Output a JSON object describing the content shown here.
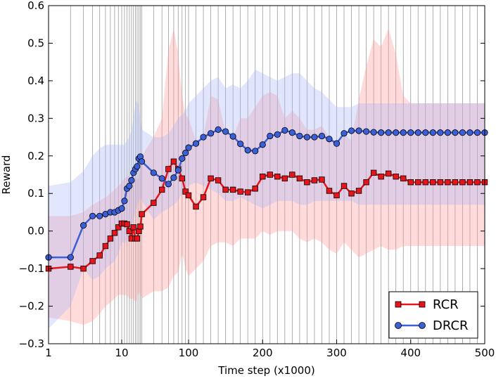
{
  "chart_data": {
    "type": "line",
    "xlabel": "Time step (x1000)",
    "ylabel": "Reward",
    "ylim": [
      -0.3,
      0.6
    ],
    "yticks": [
      "−0.3",
      "−0.2",
      "−0.1",
      "0.0",
      "0.1",
      "0.2",
      "0.3",
      "0.4",
      "0.5",
      "0.6"
    ],
    "yticks_values": [
      -0.3,
      -0.2,
      -0.1,
      0.0,
      0.1,
      0.2,
      0.3,
      0.4,
      0.5,
      0.6
    ],
    "xticks": [
      "1",
      "10",
      "100",
      "200",
      "300",
      "400",
      "500"
    ],
    "x_scale": "piecewise: log from 1 to 100, linear from 100 to 500",
    "grid": "vertical at each sample",
    "legend_position": "bottom-right",
    "x": [
      1,
      2,
      3,
      4,
      5,
      6,
      7,
      8,
      9,
      10,
      11,
      12,
      13,
      14,
      15,
      16,
      17,
      18,
      19,
      20,
      30,
      40,
      50,
      60,
      70,
      80,
      90,
      100,
      110,
      120,
      130,
      140,
      150,
      160,
      170,
      180,
      190,
      200,
      210,
      220,
      230,
      240,
      250,
      260,
      270,
      280,
      290,
      300,
      310,
      320,
      330,
      340,
      350,
      360,
      370,
      380,
      390,
      400,
      410,
      420,
      430,
      440,
      450,
      460,
      470,
      480,
      490,
      500
    ],
    "series": [
      {
        "name": "RCR",
        "color": "#e8141c",
        "band_color": "#ff9999",
        "marker": "square",
        "values": [
          -0.1,
          -0.095,
          -0.1,
          -0.08,
          -0.065,
          -0.04,
          -0.02,
          -0.005,
          0.01,
          0.02,
          0.02,
          0.018,
          0.0,
          -0.02,
          0.01,
          -0.02,
          -0.02,
          0.0,
          0.012,
          0.045,
          0.075,
          0.11,
          0.165,
          0.185,
          0.165,
          0.14,
          0.105,
          0.095,
          0.065,
          0.09,
          0.14,
          0.135,
          0.11,
          0.11,
          0.105,
          0.103,
          0.113,
          0.145,
          0.15,
          0.145,
          0.14,
          0.15,
          0.14,
          0.13,
          0.135,
          0.137,
          0.107,
          0.095,
          0.12,
          0.1,
          0.107,
          0.13,
          0.155,
          0.145,
          0.153,
          0.145,
          0.14,
          0.13,
          0.13,
          0.13,
          0.13,
          0.13,
          0.13,
          0.13,
          0.13,
          0.13,
          0.13,
          0.13
        ],
        "upper": [
          0.04,
          0.04,
          0.05,
          0.07,
          0.08,
          0.09,
          0.1,
          0.11,
          0.12,
          0.13,
          0.14,
          0.145,
          0.145,
          0.14,
          0.15,
          0.14,
          0.14,
          0.145,
          0.17,
          0.2,
          0.25,
          0.3,
          0.48,
          0.54,
          0.47,
          0.36,
          0.31,
          0.3,
          0.24,
          0.25,
          0.36,
          0.35,
          0.26,
          0.25,
          0.3,
          0.3,
          0.33,
          0.36,
          0.37,
          0.36,
          0.3,
          0.32,
          0.3,
          0.27,
          0.27,
          0.28,
          0.25,
          0.24,
          0.26,
          0.24,
          0.35,
          0.44,
          0.51,
          0.49,
          0.54,
          0.47,
          0.36,
          0.34,
          0.34,
          0.34,
          0.34,
          0.34,
          0.34,
          0.34,
          0.34,
          0.34,
          0.34,
          0.34
        ],
        "lower": [
          -0.23,
          -0.24,
          -0.25,
          -0.24,
          -0.22,
          -0.2,
          -0.19,
          -0.18,
          -0.17,
          -0.17,
          -0.17,
          -0.17,
          -0.18,
          -0.18,
          -0.18,
          -0.19,
          -0.18,
          -0.16,
          -0.17,
          -0.18,
          -0.16,
          -0.16,
          -0.15,
          -0.12,
          -0.11,
          -0.06,
          -0.1,
          -0.12,
          -0.1,
          -0.08,
          -0.04,
          -0.03,
          -0.03,
          -0.04,
          -0.02,
          -0.02,
          -0.02,
          0.0,
          -0.01,
          0.0,
          0.0,
          0.0,
          -0.02,
          -0.03,
          -0.02,
          -0.03,
          -0.05,
          -0.06,
          -0.03,
          -0.05,
          -0.07,
          -0.06,
          -0.05,
          -0.04,
          -0.05,
          -0.05,
          -0.04,
          -0.04,
          -0.04,
          -0.04,
          -0.04,
          -0.04,
          -0.04,
          -0.04,
          -0.04,
          -0.04,
          -0.04,
          -0.04
        ]
      },
      {
        "name": "DRCR",
        "color": "#3a5fd6",
        "band_color": "#aab8f5",
        "marker": "circle",
        "values": [
          -0.07,
          -0.07,
          0.015,
          0.04,
          0.04,
          0.045,
          0.05,
          0.05,
          0.055,
          0.06,
          0.08,
          0.113,
          0.12,
          0.135,
          0.155,
          0.165,
          0.172,
          0.193,
          0.198,
          0.185,
          0.155,
          0.14,
          0.125,
          0.142,
          0.162,
          0.193,
          0.208,
          0.222,
          0.233,
          0.25,
          0.26,
          0.27,
          0.265,
          0.252,
          0.232,
          0.215,
          0.213,
          0.23,
          0.253,
          0.257,
          0.268,
          0.262,
          0.253,
          0.25,
          0.25,
          0.253,
          0.245,
          0.233,
          0.26,
          0.267,
          0.267,
          0.265,
          0.263,
          0.262,
          0.262,
          0.262,
          0.262,
          0.262,
          0.262,
          0.262,
          0.262,
          0.262,
          0.262,
          0.262,
          0.262,
          0.262,
          0.262,
          0.262
        ],
        "upper": [
          0.12,
          0.13,
          0.16,
          0.2,
          0.22,
          0.23,
          0.23,
          0.23,
          0.23,
          0.23,
          0.23,
          0.24,
          0.25,
          0.27,
          0.3,
          0.34,
          0.35,
          0.33,
          0.3,
          0.27,
          0.25,
          0.25,
          0.26,
          0.28,
          0.3,
          0.31,
          0.32,
          0.34,
          0.36,
          0.38,
          0.4,
          0.41,
          0.38,
          0.39,
          0.38,
          0.4,
          0.43,
          0.42,
          0.41,
          0.4,
          0.41,
          0.42,
          0.42,
          0.4,
          0.38,
          0.37,
          0.35,
          0.33,
          0.33,
          0.33,
          0.34,
          0.34,
          0.34,
          0.34,
          0.34,
          0.34,
          0.34,
          0.34,
          0.34,
          0.34,
          0.34,
          0.34,
          0.34,
          0.34,
          0.34,
          0.34,
          0.34,
          0.34
        ],
        "lower": [
          -0.26,
          -0.2,
          -0.1,
          -0.13,
          -0.12,
          -0.1,
          -0.09,
          -0.08,
          -0.06,
          -0.03,
          -0.03,
          -0.03,
          0.0,
          0.01,
          0.03,
          0.05,
          0.07,
          0.08,
          0.09,
          0.08,
          0.03,
          0.05,
          0.06,
          0.07,
          0.08,
          0.1,
          0.11,
          0.12,
          0.13,
          0.12,
          0.11,
          0.1,
          0.08,
          0.08,
          0.09,
          0.08,
          0.07,
          0.06,
          0.07,
          0.08,
          0.08,
          0.08,
          0.07,
          0.07,
          0.08,
          0.08,
          0.08,
          0.08,
          0.08,
          0.08,
          0.07,
          0.07,
          0.07,
          0.07,
          0.07,
          0.07,
          0.07,
          0.07,
          0.07,
          0.07,
          0.07,
          0.07,
          0.07,
          0.07,
          0.07,
          0.07,
          0.07,
          0.07
        ]
      }
    ]
  }
}
